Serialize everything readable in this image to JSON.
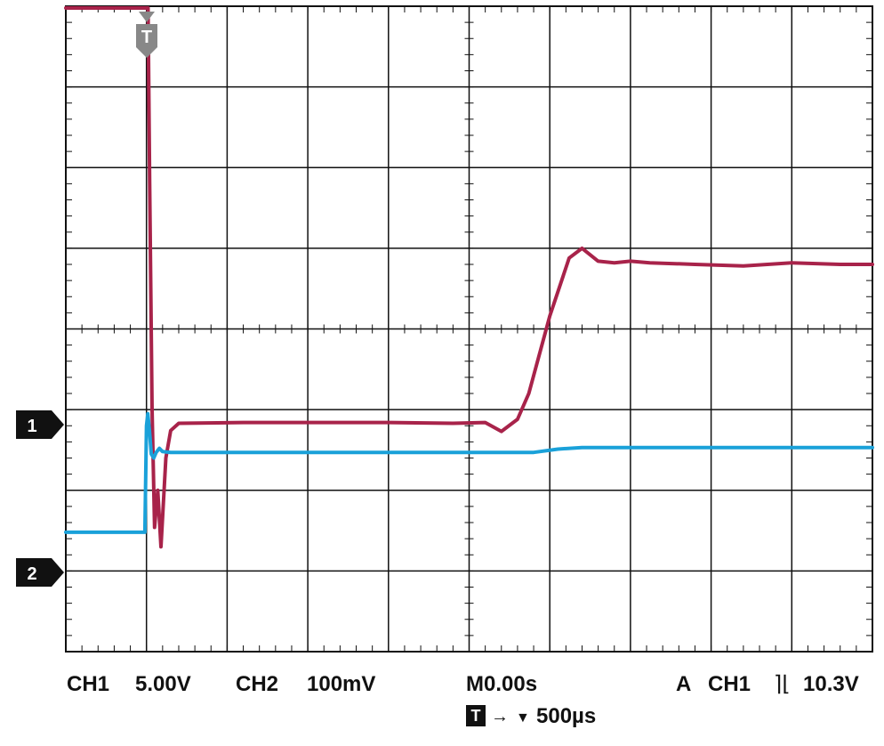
{
  "chart_data": {
    "type": "line",
    "title": "",
    "divisions": {
      "horizontal": 10,
      "vertical": 8
    },
    "x_unit": "µs",
    "x_per_div": 500,
    "x_range": [
      -500,
      4500
    ],
    "grid": true,
    "series": [
      {
        "channel": "CH1",
        "color": "#a8234a",
        "scale_label": "5.00V",
        "scale_per_div": 5.0,
        "marker": "1",
        "x": [
          -500,
          0,
          10,
          20,
          35,
          50,
          70,
          90,
          120,
          150,
          200,
          600,
          1000,
          1500,
          1900,
          2100,
          2200,
          2300,
          2370,
          2500,
          2620,
          2700,
          2800,
          2900,
          3000,
          3120,
          3400,
          3700,
          4000,
          4300,
          4500
        ],
        "y": [
          29.1,
          29.1,
          27.0,
          15.0,
          1.0,
          -6.3,
          -4.0,
          -7.5,
          -2.0,
          -0.3,
          0.15,
          0.2,
          0.2,
          0.2,
          0.15,
          0.2,
          -0.35,
          0.4,
          2.0,
          6.8,
          10.4,
          11.0,
          10.2,
          10.1,
          10.2,
          10.1,
          10.0,
          9.9,
          10.1,
          10.0,
          10.0
        ]
      },
      {
        "channel": "CH2",
        "color": "#1aa1d9",
        "scale_label": "100mV",
        "scale_per_div": 0.1,
        "marker": "2",
        "x": [
          -500,
          -10,
          0,
          8,
          18,
          30,
          45,
          60,
          80,
          100,
          150,
          200,
          800,
          1500,
          1900,
          2400,
          2550,
          2700,
          3200,
          3800,
          4500
        ],
        "y": [
          0.068,
          0.068,
          0.2,
          0.215,
          0.195,
          0.165,
          0.16,
          0.167,
          0.172,
          0.168,
          0.167,
          0.167,
          0.167,
          0.167,
          0.167,
          0.167,
          0.171,
          0.173,
          0.173,
          0.173,
          0.173
        ]
      }
    ]
  },
  "status": {
    "ch1_label": "CH1",
    "ch1_scale": "5.00V",
    "ch2_label": "CH2",
    "ch2_scale": "100mV",
    "time": "M0.00s",
    "trigger_mode": "A",
    "trigger_source": "CH1",
    "trigger_slope": "⌉⌊",
    "trigger_level": "10.3V",
    "timebase_marker": "T",
    "timebase_arrow": "→",
    "timebase_down": "▼",
    "timebase": "500µs"
  },
  "markers": {
    "ch1": "1",
    "ch2": "2",
    "trigger": "T"
  },
  "colors": {
    "ch1": "#a8234a",
    "ch2": "#1aa1d9",
    "grid": "#111111",
    "marker_fill": "#111111",
    "trigger_marker": "#888888"
  }
}
